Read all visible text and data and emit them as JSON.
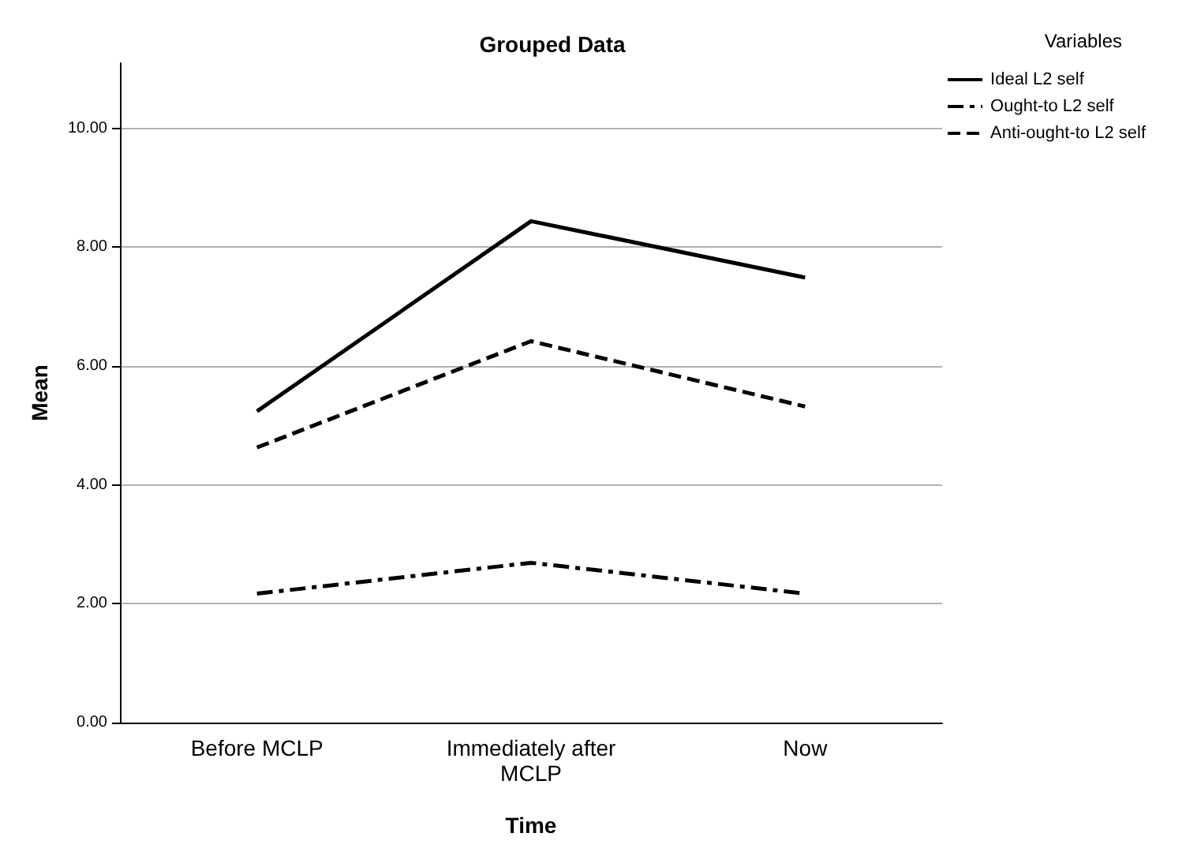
{
  "chart_data": {
    "type": "line",
    "title": "Grouped Data",
    "xlabel": "Time",
    "ylabel": "Mean",
    "legend_title": "Variables",
    "legend": "top right",
    "grid": "y",
    "marker": "none",
    "categories": [
      "Before MCLP",
      "Immediately after\nMCLP",
      "Now"
    ],
    "ylim": [
      0,
      11.1
    ],
    "yticks": [
      {
        "value": 0,
        "label": "0.00"
      },
      {
        "value": 2,
        "label": "2.00"
      },
      {
        "value": 4,
        "label": "4.00"
      },
      {
        "value": 6,
        "label": "6.00"
      },
      {
        "value": 8,
        "label": "8.00"
      },
      {
        "value": 10,
        "label": "10.00"
      }
    ],
    "series": [
      {
        "name": "Ideal L2 self",
        "color": "#000000",
        "line_style": "solid",
        "values": [
          5.24,
          8.44,
          7.49
        ]
      },
      {
        "name": "Ought-to L2 self",
        "color": "#000000",
        "line_style": "dashdot",
        "values": [
          2.17,
          2.69,
          2.17
        ]
      },
      {
        "name": "Anti-ought-to L2 self",
        "color": "#000000",
        "line_style": "dashed",
        "values": [
          4.63,
          6.42,
          5.32
        ]
      }
    ]
  }
}
